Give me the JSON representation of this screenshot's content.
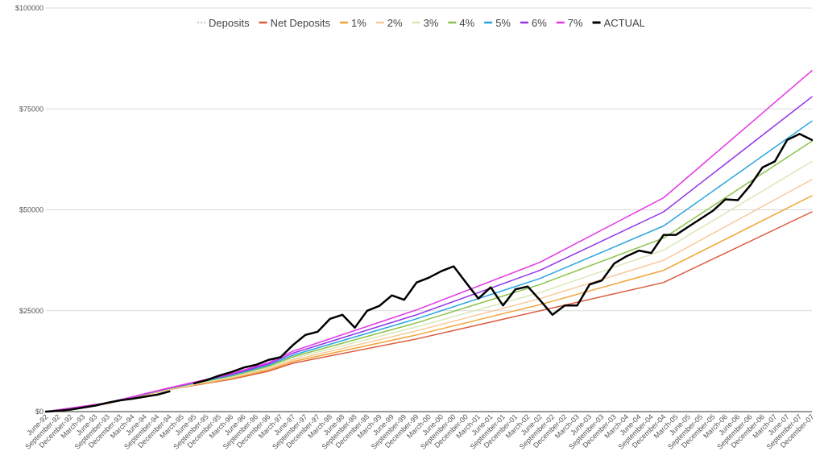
{
  "chart_data": {
    "type": "line",
    "title": "",
    "xlabel": "",
    "ylabel": "",
    "ylim": [
      0,
      100000
    ],
    "y_ticks": [
      "$0",
      "$25000",
      "$50000",
      "$75000",
      "$100000"
    ],
    "x_tick_labels": [
      "June-92",
      "September-92",
      "December-92",
      "March-93",
      "June-93",
      "September-93",
      "December-93",
      "March-94",
      "June-94",
      "September-94",
      "December-94",
      "March-95",
      "June-95",
      "September-95",
      "December-95",
      "March-96",
      "June-96",
      "September-96",
      "December-96",
      "March-97",
      "June-97",
      "September-97",
      "December-97",
      "March-98",
      "June-98",
      "September-98",
      "December-98",
      "March-99",
      "June-99",
      "September-99",
      "December-99",
      "March-00",
      "June-00",
      "September-00",
      "December-00",
      "March-01",
      "June-01",
      "September-01",
      "December-01",
      "March-02",
      "June-02",
      "September-02",
      "December-02",
      "March-03",
      "June-03",
      "September-03",
      "December-03",
      "March-04",
      "June-04",
      "September-04",
      "December-04",
      "March-05",
      "June-05",
      "September-05",
      "December-05",
      "March-06",
      "June-06",
      "September-06",
      "December-06",
      "March-07",
      "June-07",
      "September-07",
      "December-07"
    ],
    "grid": true,
    "legend_position": "top",
    "series": [
      {
        "name": "Deposits",
        "color": "#cccccc",
        "dashed": true,
        "points": [
          [
            0,
            0
          ],
          [
            5,
            2000
          ],
          [
            10,
            5500
          ],
          [
            11,
            6200
          ]
        ]
      },
      {
        "name": "Net Deposits",
        "color": "#db5b3f",
        "points": [
          [
            0,
            0
          ],
          [
            5,
            2000
          ],
          [
            10,
            5500
          ],
          [
            15,
            8000
          ],
          [
            18,
            10000
          ],
          [
            20,
            12000
          ],
          [
            30,
            18000
          ],
          [
            40,
            25000
          ],
          [
            50,
            32000
          ],
          [
            62,
            49500
          ]
        ]
      },
      {
        "name": "1%",
        "color": "#f2a43a",
        "points": [
          [
            0,
            0
          ],
          [
            5,
            2000
          ],
          [
            10,
            5500
          ],
          [
            15,
            8200
          ],
          [
            18,
            10300
          ],
          [
            20,
            12400
          ],
          [
            30,
            19000
          ],
          [
            40,
            26500
          ],
          [
            50,
            35000
          ],
          [
            62,
            53500
          ]
        ]
      },
      {
        "name": "2%",
        "color": "#f8c99a",
        "points": [
          [
            0,
            0
          ],
          [
            5,
            2000
          ],
          [
            10,
            5600
          ],
          [
            15,
            8400
          ],
          [
            18,
            10600
          ],
          [
            20,
            12800
          ],
          [
            30,
            20000
          ],
          [
            40,
            28000
          ],
          [
            50,
            37500
          ],
          [
            62,
            57500
          ]
        ]
      },
      {
        "name": "3%",
        "color": "#dbe7b8",
        "points": [
          [
            0,
            0
          ],
          [
            5,
            2100
          ],
          [
            10,
            5700
          ],
          [
            15,
            8600
          ],
          [
            18,
            10900
          ],
          [
            20,
            13200
          ],
          [
            30,
            21000
          ],
          [
            40,
            29500
          ],
          [
            50,
            40000
          ],
          [
            62,
            62000
          ]
        ]
      },
      {
        "name": "4%",
        "color": "#8bc34a",
        "points": [
          [
            0,
            0
          ],
          [
            5,
            2100
          ],
          [
            10,
            5750
          ],
          [
            15,
            8800
          ],
          [
            18,
            11200
          ],
          [
            20,
            13600
          ],
          [
            30,
            22000
          ],
          [
            40,
            31500
          ],
          [
            50,
            43000
          ],
          [
            62,
            67000
          ]
        ]
      },
      {
        "name": "5%",
        "color": "#29a5e0",
        "points": [
          [
            0,
            0
          ],
          [
            5,
            2150
          ],
          [
            10,
            5800
          ],
          [
            15,
            9000
          ],
          [
            18,
            11500
          ],
          [
            20,
            14000
          ],
          [
            30,
            23000
          ],
          [
            40,
            33000
          ],
          [
            50,
            46000
          ],
          [
            62,
            72000
          ]
        ]
      },
      {
        "name": "6%",
        "color": "#9333ea",
        "points": [
          [
            0,
            0
          ],
          [
            5,
            2150
          ],
          [
            10,
            5850
          ],
          [
            15,
            9200
          ],
          [
            18,
            11800
          ],
          [
            20,
            14500
          ],
          [
            30,
            24000
          ],
          [
            40,
            35000
          ],
          [
            50,
            49500
          ],
          [
            62,
            78000
          ]
        ]
      },
      {
        "name": "7%",
        "color": "#e535e5",
        "points": [
          [
            0,
            0
          ],
          [
            5,
            2200
          ],
          [
            10,
            5900
          ],
          [
            15,
            9400
          ],
          [
            18,
            12100
          ],
          [
            20,
            15000
          ],
          [
            30,
            25200
          ],
          [
            40,
            37000
          ],
          [
            50,
            53000
          ],
          [
            62,
            84500
          ]
        ]
      },
      {
        "name": "ACTUAL",
        "color": "#000000",
        "width": 2.5,
        "segments": [
          [
            [
              0,
              0
            ],
            [
              1,
              200
            ],
            [
              2,
              500
            ],
            [
              3,
              1000
            ],
            [
              4,
              1500
            ],
            [
              5,
              2200
            ],
            [
              6,
              2800
            ],
            [
              7,
              3200
            ],
            [
              8,
              3700
            ],
            [
              9,
              4200
            ],
            [
              10,
              5000
            ]
          ],
          [
            [
              12,
              7000
            ],
            [
              13,
              7800
            ],
            [
              14,
              8900
            ],
            [
              15,
              9800
            ],
            [
              16,
              10900
            ],
            [
              17,
              11600
            ],
            [
              18,
              12800
            ],
            [
              19,
              13500
            ],
            [
              20,
              16500
            ],
            [
              21,
              19000
            ],
            [
              22,
              19800
            ],
            [
              23,
              23000
            ],
            [
              24,
              24000
            ],
            [
              25,
              20800
            ],
            [
              26,
              25000
            ],
            [
              27,
              26200
            ],
            [
              28,
              28800
            ],
            [
              29,
              27700
            ],
            [
              30,
              32000
            ],
            [
              31,
              33200
            ],
            [
              32,
              34800
            ],
            [
              33,
              36000
            ],
            [
              34,
              32000
            ],
            [
              35,
              28000
            ],
            [
              36,
              30800
            ],
            [
              37,
              26300
            ],
            [
              38,
              30300
            ],
            [
              39,
              31000
            ],
            [
              40,
              27600
            ],
            [
              41,
              24000
            ],
            [
              42,
              26300
            ],
            [
              43,
              26300
            ],
            [
              44,
              31500
            ],
            [
              45,
              32500
            ],
            [
              46,
              36700
            ],
            [
              47,
              38500
            ],
            [
              48,
              39900
            ],
            [
              49,
              39300
            ],
            [
              50,
              43800
            ],
            [
              51,
              43800
            ],
            [
              52,
              45800
            ],
            [
              53,
              47800
            ],
            [
              54,
              49800
            ],
            [
              55,
              52600
            ],
            [
              56,
              52400
            ],
            [
              57,
              56000
            ],
            [
              58,
              60500
            ],
            [
              59,
              62000
            ],
            [
              60,
              67300
            ],
            [
              61,
              68800
            ],
            [
              62,
              67300
            ]
          ]
        ]
      }
    ]
  }
}
